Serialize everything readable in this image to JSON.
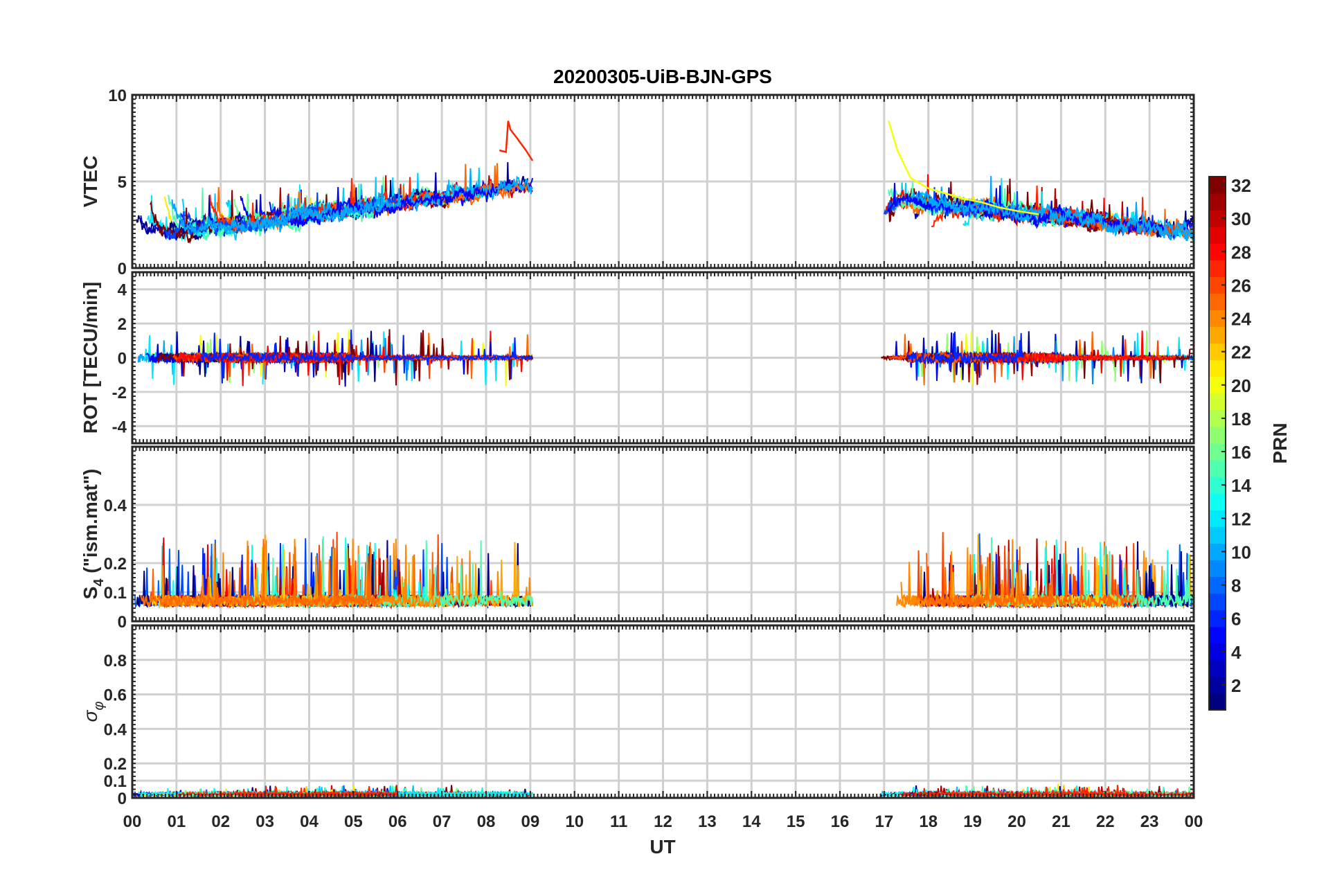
{
  "chart_data": {
    "type": "line",
    "title": "20200305-UiB-BJN-GPS",
    "xlabel": "UT",
    "x_ticks": [
      "00",
      "01",
      "02",
      "03",
      "04",
      "05",
      "06",
      "07",
      "08",
      "09",
      "10",
      "11",
      "12",
      "13",
      "14",
      "15",
      "16",
      "17",
      "18",
      "19",
      "20",
      "21",
      "22",
      "23",
      "00"
    ],
    "xlim_hours": [
      0,
      24
    ],
    "data_windows_ut_hours": [
      [
        0,
        9.05
      ],
      [
        16.8,
        24
      ]
    ],
    "panels": [
      {
        "id": "vtec",
        "ylabel": "VTEC",
        "ylim": [
          0,
          10
        ],
        "yticks": [
          0,
          5,
          10
        ],
        "ytick_labels": [
          "0",
          "5",
          "10"
        ],
        "gridlines": [
          0,
          5,
          10
        ],
        "traces": [
          {
            "prn": 27,
            "x": [
              8.3,
              8.45,
              8.5,
              8.55,
              8.7,
              8.9,
              9.05
            ],
            "y": [
              6.8,
              6.7,
              8.5,
              8.0,
              7.5,
              6.8,
              6.2
            ]
          },
          {
            "prn": 20,
            "x": [
              17.1,
              17.3,
              17.6,
              18.0,
              18.4,
              18.8,
              19.2,
              19.6,
              20.0,
              20.5
            ],
            "y": [
              8.5,
              6.8,
              5.2,
              4.6,
              4.3,
              4.0,
              3.8,
              3.5,
              3.3,
              3.1
            ]
          }
        ]
      },
      {
        "id": "rot",
        "ylabel": "ROT [TECU/min]",
        "ylim": [
          -5,
          5
        ],
        "yticks": [
          -4,
          -2,
          0,
          2,
          4
        ],
        "ytick_labels": [
          "-4",
          "-2",
          "0",
          "2",
          "4"
        ],
        "gridlines": [
          -4,
          -2,
          0,
          2,
          4
        ]
      },
      {
        "id": "s4",
        "ylabel": "S4 (\"ism.mat\")",
        "ylabel_main": "S",
        "ylabel_sub": "4",
        "ylabel_rest": "(\"ism.mat\")",
        "ylim": [
          0,
          0.6
        ],
        "yticks": [
          0,
          0.1,
          0.2,
          0.4
        ],
        "ytick_labels": [
          "0",
          "0.1",
          "0.2",
          "0.4"
        ],
        "gridlines": [
          0.1,
          0.2,
          0.4
        ]
      },
      {
        "id": "sigma",
        "ylabel": "σφ",
        "ylabel_main": "σ",
        "ylabel_sub": "φ",
        "ylim": [
          0,
          1
        ],
        "yticks": [
          0,
          0.1,
          0.2,
          0.4,
          0.6,
          0.8
        ],
        "ytick_labels": [
          "0",
          "0.1",
          "0.2",
          "0.4",
          "0.6",
          "0.8"
        ],
        "gridlines": [
          0.1,
          0.2,
          0.4,
          0.6,
          0.8
        ]
      }
    ],
    "colorbar": {
      "label": "PRN",
      "colormap": "jet",
      "range": [
        1,
        32
      ],
      "ticks": [
        2,
        4,
        6,
        8,
        10,
        12,
        14,
        16,
        18,
        20,
        22,
        24,
        26,
        28,
        30,
        32
      ],
      "tick_labels": [
        "2",
        "4",
        "6",
        "8",
        "10",
        "12",
        "14",
        "16",
        "18",
        "20",
        "22",
        "24",
        "26",
        "28",
        "30",
        "32"
      ]
    },
    "colors": {
      "axis": "#262626",
      "grid": "#d0d0d0",
      "background": "#ffffff"
    }
  }
}
